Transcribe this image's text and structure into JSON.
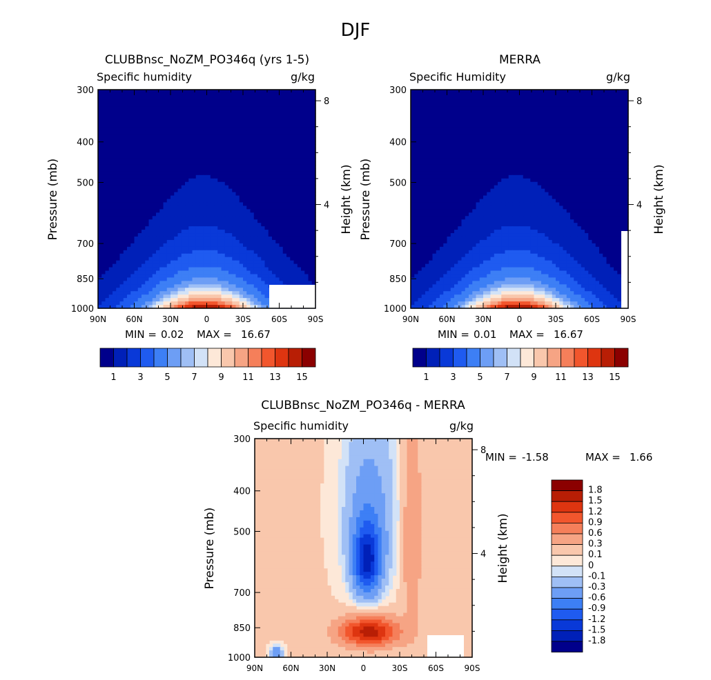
{
  "figure_title": "DJF",
  "chart_data": [
    {
      "type": "heatmap",
      "title": "CLUBBnsc_NoZM_PO346q (yrs 1-5)",
      "subtitle_left": "Specific humidity",
      "subtitle_right": "g/kg",
      "xlabel": "",
      "ylabel": "Pressure (mb)",
      "ylabel_right": "Height (km)",
      "x_ticks": [
        "90N",
        "60N",
        "30N",
        "0",
        "30S",
        "60S",
        "90S"
      ],
      "y_ticks": [
        "300",
        "400",
        "500",
        "700",
        "850",
        "1000"
      ],
      "y_right_ticks": [
        "8",
        "4"
      ],
      "min_label": "MIN =",
      "min_value": "0.02",
      "max_label": "MAX =",
      "max_value": "16.67",
      "colorbar_labels": [
        "1",
        "3",
        "5",
        "7",
        "9",
        "11",
        "13",
        "15"
      ],
      "colorbar_orientation": "horizontal",
      "field": {
        "peak": 16.67,
        "peak_lat": 2,
        "peak_p": 1000,
        "min": 0.02
      }
    },
    {
      "type": "heatmap",
      "title": "MERRA",
      "subtitle_left": "Specific Humidity",
      "subtitle_right": "g/kg",
      "xlabel": "",
      "ylabel": "Pressure (mb)",
      "ylabel_right": "Height (km)",
      "x_ticks": [
        "90N",
        "60N",
        "30N",
        "0",
        "30S",
        "60S",
        "90S"
      ],
      "y_ticks": [
        "300",
        "400",
        "500",
        "700",
        "850",
        "1000"
      ],
      "y_right_ticks": [
        "8",
        "4"
      ],
      "min_label": "MIN =",
      "min_value": "0.01",
      "max_label": "MAX =",
      "max_value": "16.67",
      "colorbar_labels": [
        "1",
        "3",
        "5",
        "7",
        "9",
        "11",
        "13",
        "15"
      ],
      "colorbar_orientation": "horizontal",
      "field": {
        "peak": 16.67,
        "peak_lat": 2,
        "peak_p": 1000,
        "min": 0.01
      }
    },
    {
      "type": "heatmap",
      "title": "CLUBBnsc_NoZM_PO346q - MERRA",
      "subtitle_left": "Specific humidity",
      "subtitle_right": "g/kg",
      "xlabel": "",
      "ylabel": "Pressure (mb)",
      "ylabel_right": "Height (km)",
      "x_ticks": [
        "90N",
        "60N",
        "30N",
        "0",
        "30S",
        "60S",
        "90S"
      ],
      "y_ticks": [
        "300",
        "400",
        "500",
        "700",
        "850",
        "1000"
      ],
      "y_right_ticks": [
        "8",
        "4"
      ],
      "min_label": "MIN =",
      "min_value": "-1.58",
      "max_label": "MAX =",
      "max_value": "1.66",
      "colorbar_labels": [
        "1.8",
        "1.5",
        "1.2",
        "0.9",
        "0.6",
        "0.3",
        "0.1",
        "0",
        "-0.1",
        "-0.3",
        "-0.6",
        "-0.9",
        "-1.2",
        "-1.5",
        "-1.8"
      ],
      "colorbar_orientation": "vertical",
      "field": {
        "min": -1.58,
        "max": 1.66
      }
    }
  ],
  "colors": {
    "abs_scale": [
      "#00008b",
      "#0020b8",
      "#0939d8",
      "#1f5bf0",
      "#3d7ff5",
      "#6d9ef5",
      "#9fbff5",
      "#d2e2f7",
      "#fde8d8",
      "#f9c7ac",
      "#f6a484",
      "#f57f5a",
      "#f2562d",
      "#de3510",
      "#b81e05",
      "#8b0000"
    ],
    "diff_scale": [
      "#8b0000",
      "#b81e05",
      "#de3510",
      "#f2562d",
      "#f57f5a",
      "#f6a484",
      "#f9c7ac",
      "#fde8d8",
      "#d2e2f7",
      "#9fbff5",
      "#6d9ef5",
      "#3d7ff5",
      "#1f5bf0",
      "#0939d8",
      "#0020b8",
      "#00008b"
    ]
  }
}
